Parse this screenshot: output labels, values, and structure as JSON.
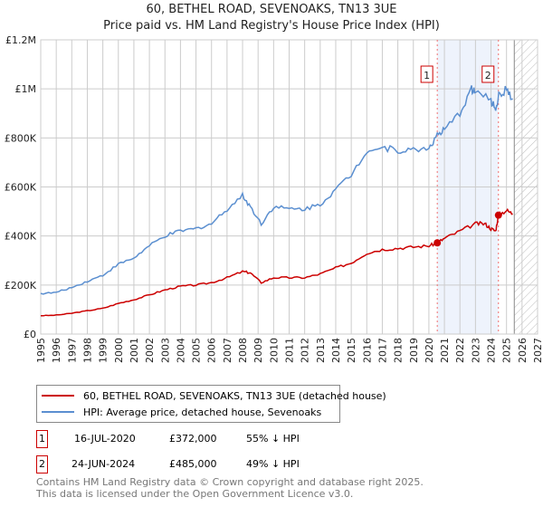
{
  "chart_data": {
    "type": "line",
    "title": "60, BETHEL ROAD, SEVENOAKS, TN13 3UE",
    "subtitle": "Price paid vs. HM Land Registry's House Price Index (HPI)",
    "xlim": [
      1995,
      2027
    ],
    "ylim": [
      0,
      1200000
    ],
    "xticks": [
      "1995",
      "1996",
      "1997",
      "1998",
      "1999",
      "2000",
      "2001",
      "2002",
      "2003",
      "2004",
      "2005",
      "2006",
      "2007",
      "2008",
      "2009",
      "2010",
      "2011",
      "2012",
      "2013",
      "2014",
      "2015",
      "2016",
      "2017",
      "2018",
      "2019",
      "2020",
      "2021",
      "2022",
      "2023",
      "2024",
      "2025",
      "2026",
      "2027"
    ],
    "yticks": [
      {
        "v": 0,
        "l": "£0"
      },
      {
        "v": 200000,
        "l": "£200K"
      },
      {
        "v": 400000,
        "l": "£400K"
      },
      {
        "v": 600000,
        "l": "£600K"
      },
      {
        "v": 800000,
        "l": "£800K"
      },
      {
        "v": 1000000,
        "l": "£1M"
      },
      {
        "v": 1200000,
        "l": "£1.2M"
      }
    ],
    "grid": true,
    "shaded_range": [
      2020.54,
      2024.48
    ],
    "forecast_from": 2025.5,
    "series": [
      {
        "name": "60, BETHEL ROAD, SEVENOAKS, TN13 3UE (detached house)",
        "color": "#cc0000",
        "x": [
          1995,
          1996,
          1997,
          1998,
          1999,
          2000,
          2001,
          2002,
          2003,
          2004,
          2005,
          2006,
          2007,
          2008,
          2008.5,
          2009.2,
          2010,
          2011,
          2012,
          2013,
          2014,
          2015,
          2016,
          2017,
          2018,
          2019,
          2020,
          2020.54,
          2021,
          2022,
          2023,
          2023.6,
          2024,
          2024.3,
          2024.48,
          2025,
          2025.4
        ],
        "y": [
          75000,
          77000,
          85000,
          95000,
          105000,
          125000,
          140000,
          160000,
          180000,
          195000,
          200000,
          210000,
          230000,
          255000,
          250000,
          210000,
          230000,
          230000,
          230000,
          245000,
          270000,
          290000,
          330000,
          345000,
          350000,
          355000,
          360000,
          372000,
          390000,
          420000,
          450000,
          450000,
          430000,
          420000,
          485000,
          505000,
          490000
        ]
      },
      {
        "name": "HPI: Average price, detached house, Sevenoaks",
        "color": "#5b8fd0",
        "x": [
          1995,
          1996,
          1997,
          1998,
          1999,
          2000,
          2001,
          2002,
          2003,
          2004,
          2005,
          2006,
          2007,
          2008,
          2008.5,
          2009.2,
          2010,
          2011,
          2012,
          2013,
          2014,
          2015,
          2016,
          2017,
          2018,
          2019,
          2020,
          2020.54,
          2021,
          2022,
          2022.7,
          2023,
          2024,
          2024.3,
          2024.5,
          2025,
          2025.4
        ],
        "y": [
          165000,
          170000,
          190000,
          215000,
          240000,
          285000,
          310000,
          360000,
          400000,
          420000,
          430000,
          450000,
          510000,
          565000,
          520000,
          450000,
          520000,
          510000,
          510000,
          530000,
          590000,
          650000,
          750000,
          760000,
          750000,
          750000,
          760000,
          810000,
          830000,
          900000,
          1000000,
          990000,
          950000,
          920000,
          970000,
          1000000,
          960000
        ]
      }
    ],
    "sales": [
      {
        "id": "1",
        "x": 2020.54,
        "y": 372000,
        "date": "16-JUL-2020",
        "price": "£372,000",
        "delta": "55% ↓ HPI"
      },
      {
        "id": "2",
        "x": 2024.48,
        "y": 485000,
        "date": "24-JUN-2024",
        "price": "£485,000",
        "delta": "49% ↓ HPI"
      }
    ]
  },
  "footer": {
    "line1": "Contains HM Land Registry data © Crown copyright and database right 2025.",
    "line2": "This data is licensed under the Open Government Licence v3.0."
  }
}
